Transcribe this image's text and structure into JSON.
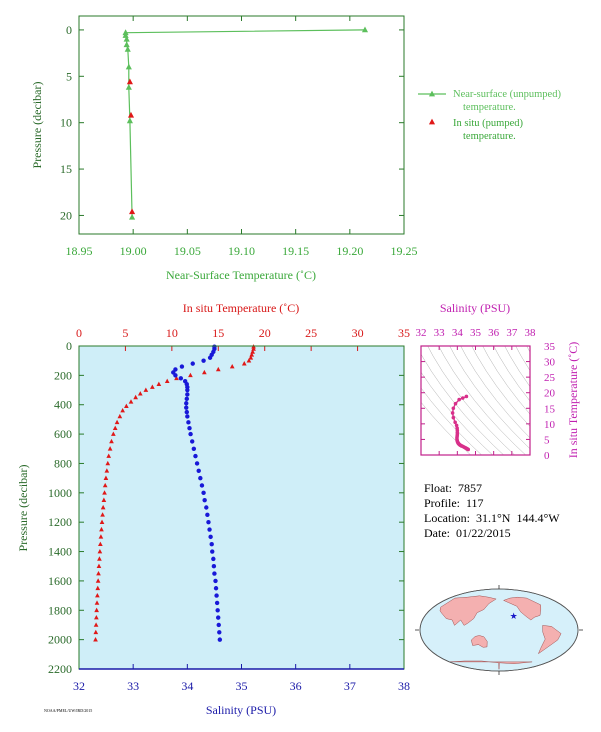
{
  "chart_data": [
    {
      "type": "line",
      "xlabel": "Near-Surface Temperature (˚C)",
      "ylabel": "Pressure (decibar)",
      "xlim": [
        18.95,
        19.25
      ],
      "ylim": [
        22,
        -1.5
      ],
      "x_ticks": [
        "18.95",
        "19.00",
        "19.05",
        "19.10",
        "19.15",
        "19.20",
        "19.25"
      ],
      "y_ticks": [
        "0",
        "5",
        "10",
        "15",
        "20"
      ],
      "legend_position": "right",
      "series": [
        {
          "name": "Near-surface (unpumped) temperature.",
          "color": "#5cbf5c",
          "marker": "triangle",
          "points": [
            {
              "x": 19.214,
              "y": 0.0
            },
            {
              "x": 18.993,
              "y": 0.3
            },
            {
              "x": 18.993,
              "y": 0.6
            },
            {
              "x": 18.994,
              "y": 1.0
            },
            {
              "x": 18.994,
              "y": 1.6
            },
            {
              "x": 18.995,
              "y": 2.1
            },
            {
              "x": 18.996,
              "y": 4.0
            },
            {
              "x": 18.996,
              "y": 6.2
            },
            {
              "x": 18.997,
              "y": 9.8
            },
            {
              "x": 18.999,
              "y": 20.2
            }
          ]
        },
        {
          "name": "In situ (pumped) temperature.",
          "color": "#e01818",
          "marker": "triangle",
          "points": [
            {
              "x": 18.997,
              "y": 5.6
            },
            {
              "x": 18.998,
              "y": 9.2
            },
            {
              "x": 18.999,
              "y": 19.6
            }
          ]
        }
      ]
    },
    {
      "type": "scatter",
      "ylabel": "Pressure (decibar)",
      "ylim": [
        2200,
        0
      ],
      "y_ticks": [
        "0",
        "200",
        "400",
        "600",
        "800",
        "1000",
        "1200",
        "1400",
        "1600",
        "1800",
        "2000",
        "2200"
      ],
      "top_axis": {
        "label": "In situ Temperature (˚C)",
        "range": [
          0,
          35
        ],
        "ticks": [
          "0",
          "5",
          "10",
          "15",
          "20",
          "25",
          "30",
          "35"
        ],
        "color": "#d81818"
      },
      "bottom_axis": {
        "label": "Salinity (PSU)",
        "range": [
          32,
          38
        ],
        "ticks": [
          "32",
          "33",
          "34",
          "35",
          "36",
          "37",
          "38"
        ],
        "color": "#1a1aa8"
      },
      "background": "#cfeef8",
      "series": [
        {
          "name": "In situ Temperature",
          "axis": "top",
          "color": "#e01818",
          "marker": "triangle",
          "points": [
            [
              18.8,
              5
            ],
            [
              18.8,
              20
            ],
            [
              18.7,
              40
            ],
            [
              18.6,
              60
            ],
            [
              18.5,
              80
            ],
            [
              18.3,
              100
            ],
            [
              17.8,
              120
            ],
            [
              16.5,
              140
            ],
            [
              15.0,
              160
            ],
            [
              13.5,
              180
            ],
            [
              12.0,
              200
            ],
            [
              10.5,
              220
            ],
            [
              9.5,
              240
            ],
            [
              8.6,
              260
            ],
            [
              7.9,
              280
            ],
            [
              7.2,
              300
            ],
            [
              6.6,
              325
            ],
            [
              6.1,
              350
            ],
            [
              5.6,
              380
            ],
            [
              5.1,
              410
            ],
            [
              4.7,
              440
            ],
            [
              4.4,
              480
            ],
            [
              4.1,
              520
            ],
            [
              3.9,
              560
            ],
            [
              3.7,
              600
            ],
            [
              3.5,
              650
            ],
            [
              3.35,
              700
            ],
            [
              3.2,
              750
            ],
            [
              3.1,
              800
            ],
            [
              3.0,
              850
            ],
            [
              2.9,
              900
            ],
            [
              2.82,
              950
            ],
            [
              2.75,
              1000
            ],
            [
              2.68,
              1050
            ],
            [
              2.6,
              1100
            ],
            [
              2.54,
              1150
            ],
            [
              2.48,
              1200
            ],
            [
              2.42,
              1250
            ],
            [
              2.36,
              1300
            ],
            [
              2.3,
              1350
            ],
            [
              2.25,
              1400
            ],
            [
              2.2,
              1450
            ],
            [
              2.15,
              1500
            ],
            [
              2.1,
              1550
            ],
            [
              2.06,
              1600
            ],
            [
              2.02,
              1650
            ],
            [
              1.98,
              1700
            ],
            [
              1.94,
              1750
            ],
            [
              1.9,
              1800
            ],
            [
              1.87,
              1850
            ],
            [
              1.84,
              1900
            ],
            [
              1.81,
              1950
            ],
            [
              1.78,
              2000
            ]
          ]
        },
        {
          "name": "Salinity",
          "axis": "bottom",
          "color": "#1818d8",
          "marker": "circle",
          "points": [
            [
              34.5,
              5
            ],
            [
              34.5,
              20
            ],
            [
              34.48,
              40
            ],
            [
              34.45,
              60
            ],
            [
              34.42,
              80
            ],
            [
              34.3,
              100
            ],
            [
              34.1,
              120
            ],
            [
              33.9,
              140
            ],
            [
              33.78,
              160
            ],
            [
              33.74,
              180
            ],
            [
              33.78,
              200
            ],
            [
              33.88,
              220
            ],
            [
              33.96,
              240
            ],
            [
              33.99,
              260
            ],
            [
              34.0,
              280
            ],
            [
              34.0,
              300
            ],
            [
              34.0,
              330
            ],
            [
              33.99,
              360
            ],
            [
              33.98,
              390
            ],
            [
              33.98,
              420
            ],
            [
              33.99,
              450
            ],
            [
              34.0,
              480
            ],
            [
              34.02,
              520
            ],
            [
              34.04,
              560
            ],
            [
              34.06,
              600
            ],
            [
              34.09,
              650
            ],
            [
              34.12,
              700
            ],
            [
              34.15,
              750
            ],
            [
              34.18,
              800
            ],
            [
              34.21,
              850
            ],
            [
              34.24,
              900
            ],
            [
              34.27,
              950
            ],
            [
              34.3,
              1000
            ],
            [
              34.32,
              1050
            ],
            [
              34.35,
              1100
            ],
            [
              34.37,
              1150
            ],
            [
              34.39,
              1200
            ],
            [
              34.41,
              1250
            ],
            [
              34.43,
              1300
            ],
            [
              34.45,
              1350
            ],
            [
              34.46,
              1400
            ],
            [
              34.48,
              1450
            ],
            [
              34.49,
              1500
            ],
            [
              34.5,
              1550
            ],
            [
              34.52,
              1600
            ],
            [
              34.53,
              1650
            ],
            [
              34.54,
              1700
            ],
            [
              34.55,
              1750
            ],
            [
              34.56,
              1800
            ],
            [
              34.57,
              1850
            ],
            [
              34.58,
              1900
            ],
            [
              34.59,
              1950
            ],
            [
              34.6,
              2000
            ]
          ]
        }
      ]
    },
    {
      "type": "scatter",
      "xlabel": "Salinity (PSU)",
      "ylabel": "In situ Temperature (˚C)",
      "xlim": [
        32,
        38
      ],
      "ylim": [
        0,
        35
      ],
      "x_ticks": [
        "32",
        "33",
        "34",
        "35",
        "36",
        "37",
        "38"
      ],
      "y_ticks": [
        "0",
        "5",
        "10",
        "15",
        "20",
        "25",
        "30",
        "35"
      ],
      "color": "#d8308a",
      "points": [
        [
          34.5,
          18.8
        ],
        [
          34.3,
          18.3
        ],
        [
          34.1,
          17.8
        ],
        [
          33.9,
          16.5
        ],
        [
          33.78,
          15.0
        ],
        [
          33.74,
          13.5
        ],
        [
          33.78,
          12.0
        ],
        [
          33.88,
          10.5
        ],
        [
          33.96,
          9.5
        ],
        [
          33.99,
          8.6
        ],
        [
          34.0,
          7.9
        ],
        [
          34.0,
          7.2
        ],
        [
          34.0,
          6.6
        ],
        [
          33.99,
          6.1
        ],
        [
          33.98,
          5.6
        ],
        [
          33.98,
          5.1
        ],
        [
          33.99,
          4.7
        ],
        [
          34.0,
          4.4
        ],
        [
          34.02,
          4.1
        ],
        [
          34.04,
          3.9
        ],
        [
          34.06,
          3.7
        ],
        [
          34.09,
          3.5
        ],
        [
          34.12,
          3.35
        ],
        [
          34.15,
          3.2
        ],
        [
          34.18,
          3.1
        ],
        [
          34.21,
          3.0
        ],
        [
          34.24,
          2.9
        ],
        [
          34.3,
          2.75
        ],
        [
          34.35,
          2.6
        ],
        [
          34.4,
          2.45
        ],
        [
          34.45,
          2.3
        ],
        [
          34.49,
          2.15
        ],
        [
          34.53,
          2.02
        ],
        [
          34.56,
          1.9
        ],
        [
          34.6,
          1.78
        ]
      ]
    }
  ],
  "float_info": {
    "float": "Float:  7857",
    "profile": "Profile:  117",
    "location": "Location:  31.1°N  144.4°W",
    "date": "Date:  01/22/2015"
  },
  "map": {
    "land_color": "#f4b0b0",
    "ocean_color": "#d6f0fa",
    "marker": {
      "lat": 31.1,
      "lon": -144.4,
      "color": "#1818c8"
    }
  },
  "credit": "NOAA/PMEL/UW/IRD/2015"
}
